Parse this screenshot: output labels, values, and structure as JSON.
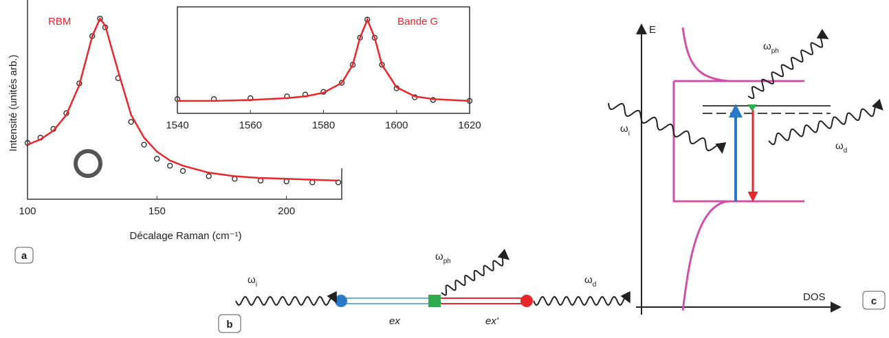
{
  "chart_data": [
    {
      "type": "line",
      "annotation": "RBM",
      "annotation_color": "#e8262b",
      "ylabel": "Intensité (unités arb.)",
      "xlabel": "Décalage Raman (cm⁻¹)",
      "x": [
        100,
        105,
        110,
        115,
        120,
        125,
        128,
        130,
        135,
        140,
        145,
        150,
        155,
        160,
        170,
        180,
        190,
        200,
        210,
        220
      ],
      "series": [
        {
          "color": "#222222",
          "style": "markers",
          "values": [
            0.29,
            0.32,
            0.37,
            0.46,
            0.63,
            0.9,
            1.0,
            0.95,
            0.66,
            0.41,
            0.28,
            0.2,
            0.16,
            0.13,
            0.1,
            0.085,
            0.075,
            0.07,
            0.065,
            0.065
          ]
        },
        {
          "color": "#e8262b",
          "style": "line",
          "values": [
            0.28,
            0.31,
            0.36,
            0.45,
            0.62,
            0.9,
            1.0,
            0.96,
            0.7,
            0.45,
            0.32,
            0.24,
            0.19,
            0.16,
            0.12,
            0.1,
            0.09,
            0.085,
            0.08,
            0.075
          ]
        }
      ],
      "xlim": [
        100,
        220
      ],
      "ylim": [
        0,
        1.02
      ],
      "xticks": [
        100,
        150,
        200
      ]
    },
    {
      "type": "line",
      "annotation": "Bande G",
      "annotation_color": "#e8262b",
      "x": [
        1540,
        1550,
        1560,
        1570,
        1575,
        1580,
        1585,
        1588,
        1590,
        1592,
        1594,
        1596,
        1600,
        1605,
        1610,
        1620
      ],
      "series": [
        {
          "color": "#222222",
          "style": "markers",
          "values": [
            0.12,
            0.12,
            0.13,
            0.15,
            0.17,
            0.2,
            0.3,
            0.5,
            0.8,
            1.0,
            0.8,
            0.5,
            0.24,
            0.14,
            0.11,
            0.1
          ]
        },
        {
          "color": "#e8262b",
          "style": "line",
          "values": [
            0.1,
            0.1,
            0.11,
            0.13,
            0.15,
            0.19,
            0.3,
            0.5,
            0.8,
            1.0,
            0.8,
            0.5,
            0.25,
            0.15,
            0.12,
            0.1
          ]
        }
      ],
      "xlim": [
        1540,
        1620
      ],
      "ylim": [
        0,
        1.05
      ],
      "xticks": [
        1540,
        1560,
        1580,
        1600,
        1620
      ]
    }
  ],
  "panel_a": {
    "label": "a"
  },
  "panel_b": {
    "label": "b",
    "omega_i": {
      "symbol": "ω",
      "sub": "i"
    },
    "omega_ph": {
      "symbol": "ω",
      "sub": "ph"
    },
    "omega_d": {
      "symbol": "ω",
      "sub": "d"
    },
    "ex": "ex",
    "ex_prime": "ex'"
  },
  "panel_c": {
    "label": "c",
    "y_axis": "E",
    "x_axis": "DOS",
    "omega_i": {
      "symbol": "ω",
      "sub": "i"
    },
    "omega_ph": {
      "symbol": "ω",
      "sub": "ph"
    },
    "omega_d": {
      "symbol": "ω",
      "sub": "d"
    }
  }
}
